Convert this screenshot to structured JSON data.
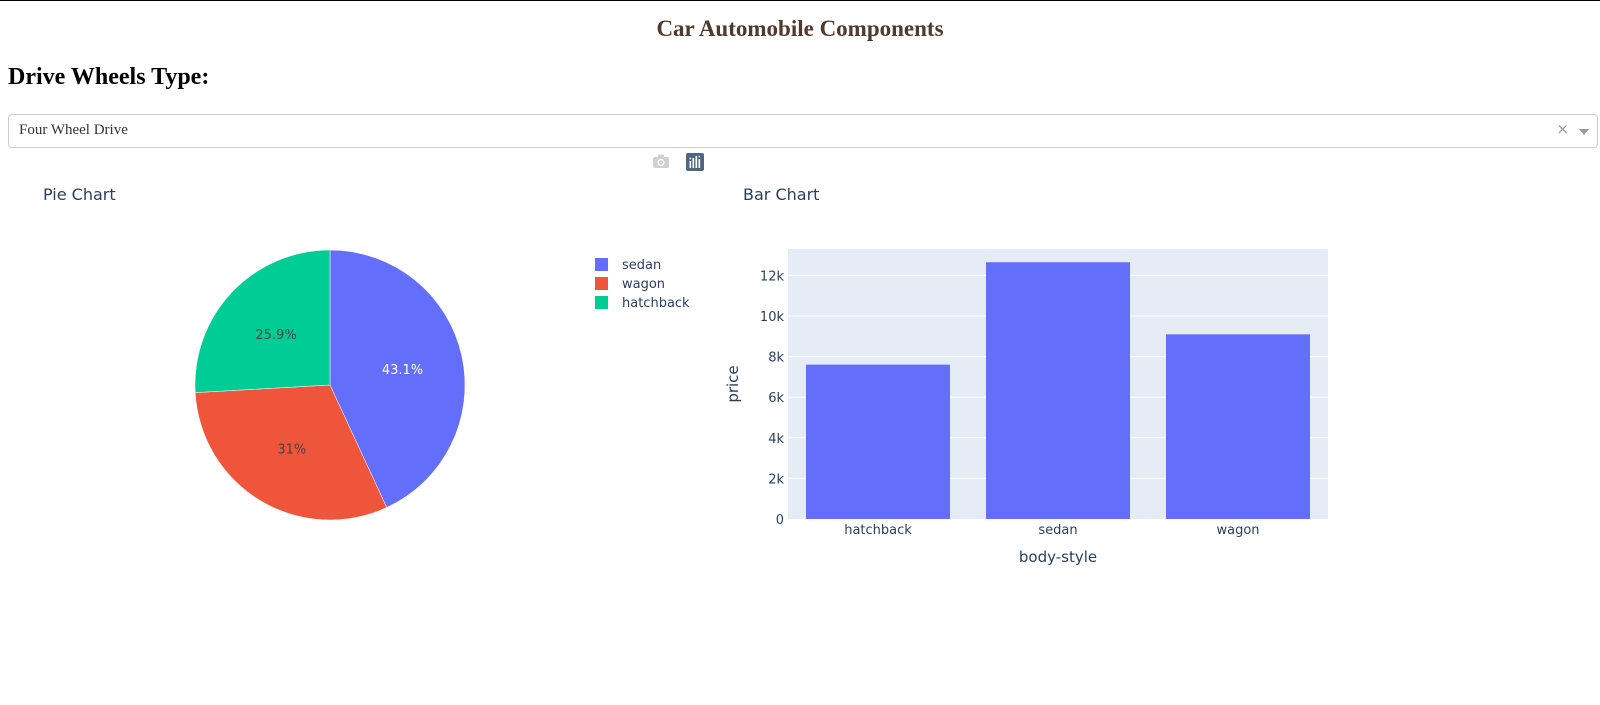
{
  "header": {
    "title": "Car Automobile Components"
  },
  "controls": {
    "heading": "Drive Wheels Type:",
    "dropdown": {
      "selected": "Four Wheel Drive",
      "clear_glyph": "×"
    }
  },
  "modebar": {
    "icons": [
      "camera-icon",
      "plotly-logo-icon"
    ]
  },
  "colors": {
    "blue": "#636efa",
    "red": "#ef553b",
    "green": "#00cc96",
    "bar_bg": "#e5ecf6"
  },
  "chart_data": [
    {
      "type": "pie",
      "title": "Pie Chart",
      "labels": [
        "sedan",
        "wagon",
        "hatchback"
      ],
      "values": [
        43.1,
        31.0,
        25.9
      ],
      "text_labels": [
        "43.1%",
        "31%",
        "25.9%"
      ],
      "colors": [
        "#636efa",
        "#ef553b",
        "#00cc96"
      ],
      "legend": "right"
    },
    {
      "type": "bar",
      "title": "Bar Chart",
      "categories": [
        "hatchback",
        "sedan",
        "wagon"
      ],
      "values": [
        7603,
        12647,
        9096
      ],
      "xlabel": "body-style",
      "ylabel": "price",
      "ylim": [
        0,
        13300
      ],
      "yticks": [
        0,
        2000,
        4000,
        6000,
        8000,
        10000,
        12000
      ],
      "ytick_labels": [
        "0",
        "2k",
        "4k",
        "6k",
        "8k",
        "10k",
        "12k"
      ],
      "color": "#636efa",
      "grid": true
    }
  ]
}
